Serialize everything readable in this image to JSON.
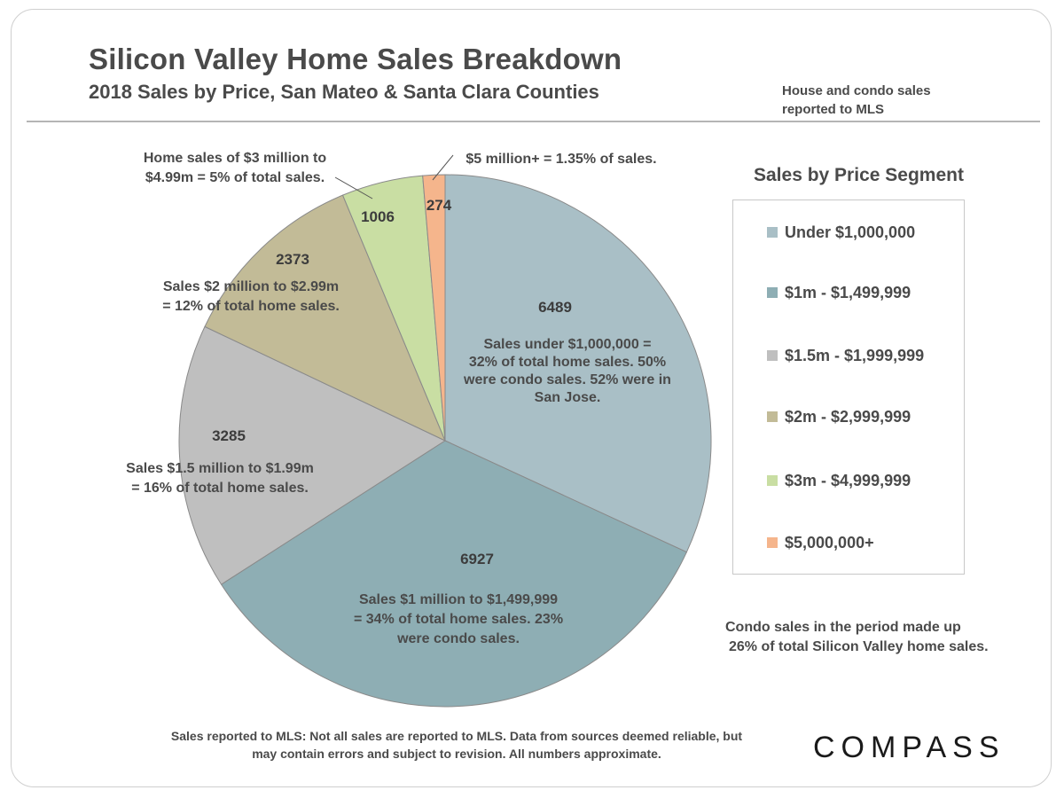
{
  "header": {
    "title": "Silicon Valley Home Sales Breakdown",
    "subtitle": "2018 Sales by Price, San Mateo & Santa Clara Counties",
    "note": [
      "House and condo sales",
      "reported to MLS"
    ]
  },
  "chart_data": {
    "type": "pie",
    "legend_title": "Sales by Price Segment",
    "legend_position": "right",
    "categories": [
      "Under $1,000,000",
      "$1m - $1,499,999",
      "$1.5m - $1,999,999",
      "$2m - $2,999,999",
      "$3m - $4,999,999",
      "$5,000,000+"
    ],
    "values": [
      6489,
      6927,
      3285,
      2373,
      1006,
      274
    ],
    "colors": [
      "#a9bfc6",
      "#8eaeb4",
      "#bfbfbf",
      "#c2bb97",
      "#c9dea3",
      "#f5b58c"
    ],
    "data_labels": [
      "6489",
      "6927",
      "3285",
      "2373",
      "1006",
      "274"
    ],
    "annotations": [
      [
        "Sales under $1,000,000  =",
        "32% of total home sales. 50%",
        "were condo sales. 52% were in",
        "San Jose."
      ],
      [
        "Sales $1 million to $1,499,999",
        "= 34% of total home sales.  23%",
        "were condo sales."
      ],
      [
        "Sales $1.5 million to $1.99m",
        "= 16% of total home sales."
      ],
      [
        "Sales $2 million to $2.99m",
        "= 12% of total home sales."
      ],
      [
        "Home sales of $3 million to",
        "$4.99m = 5% of total sales."
      ],
      [
        "$5 million+ = 1.35% of sales."
      ]
    ]
  },
  "condo_note": [
    "Condo sales in the period made up",
    "26% of total Silicon Valley home sales."
  ],
  "footer": [
    "Sales reported to MLS: Not all sales are reported to MLS. Data from sources deemed reliable, but",
    "may contain errors and subject to revision. All numbers approximate."
  ],
  "brand": "COMPASS"
}
